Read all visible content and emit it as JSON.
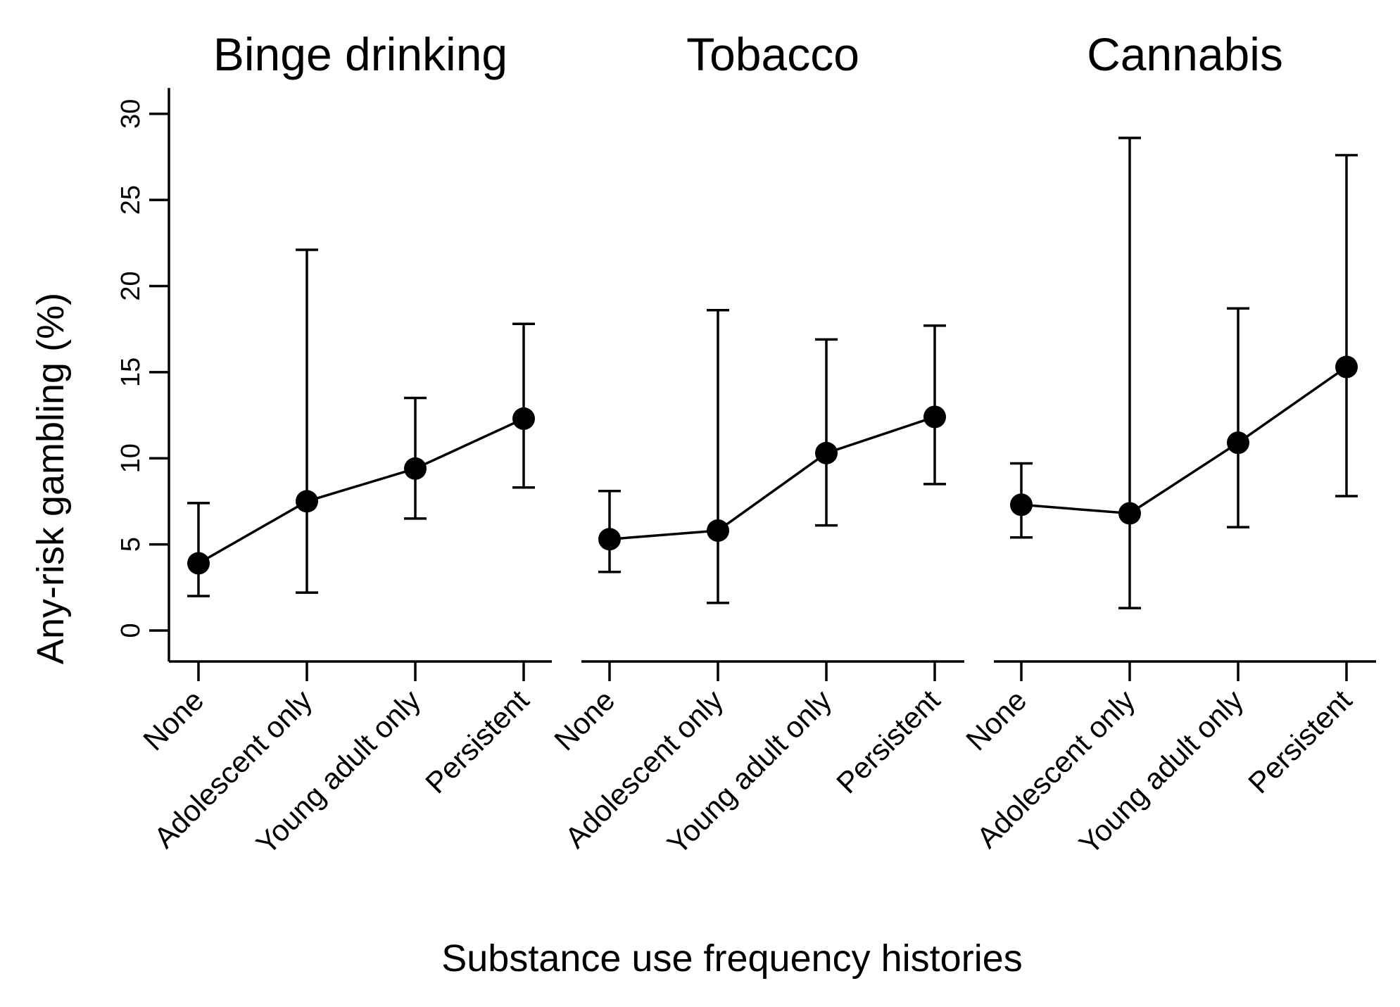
{
  "chart_data": {
    "type": "line",
    "ylabel": "Any-risk gambling (%)",
    "xlabel": "Substance use frequency histories",
    "ylim": [
      -1.8,
      31.5
    ],
    "yticks": [
      0,
      5,
      10,
      15,
      20,
      25,
      30
    ],
    "ytick_labels": [
      "0",
      "5",
      "10",
      "15",
      "20",
      "25",
      "30"
    ],
    "grid": false,
    "error_bars": true,
    "categories": [
      "None",
      "Adolescent only",
      "Young adult only",
      "Persistent"
    ],
    "panels": [
      {
        "title": "Binge drinking",
        "values": [
          3.9,
          7.5,
          9.4,
          12.3
        ],
        "ci_lower": [
          2.0,
          2.2,
          6.5,
          8.3
        ],
        "ci_upper": [
          7.4,
          22.1,
          13.5,
          17.8
        ]
      },
      {
        "title": "Tobacco",
        "values": [
          5.3,
          5.8,
          10.3,
          12.4
        ],
        "ci_lower": [
          3.4,
          1.6,
          6.1,
          8.5
        ],
        "ci_upper": [
          8.1,
          18.6,
          16.9,
          17.7
        ]
      },
      {
        "title": "Cannabis",
        "values": [
          7.3,
          6.8,
          10.9,
          15.3
        ],
        "ci_lower": [
          5.4,
          1.3,
          6.0,
          7.8
        ],
        "ci_upper": [
          9.7,
          28.6,
          18.7,
          27.6
        ]
      }
    ],
    "colors": {
      "line": "#000000",
      "background": "#ffffff"
    }
  }
}
